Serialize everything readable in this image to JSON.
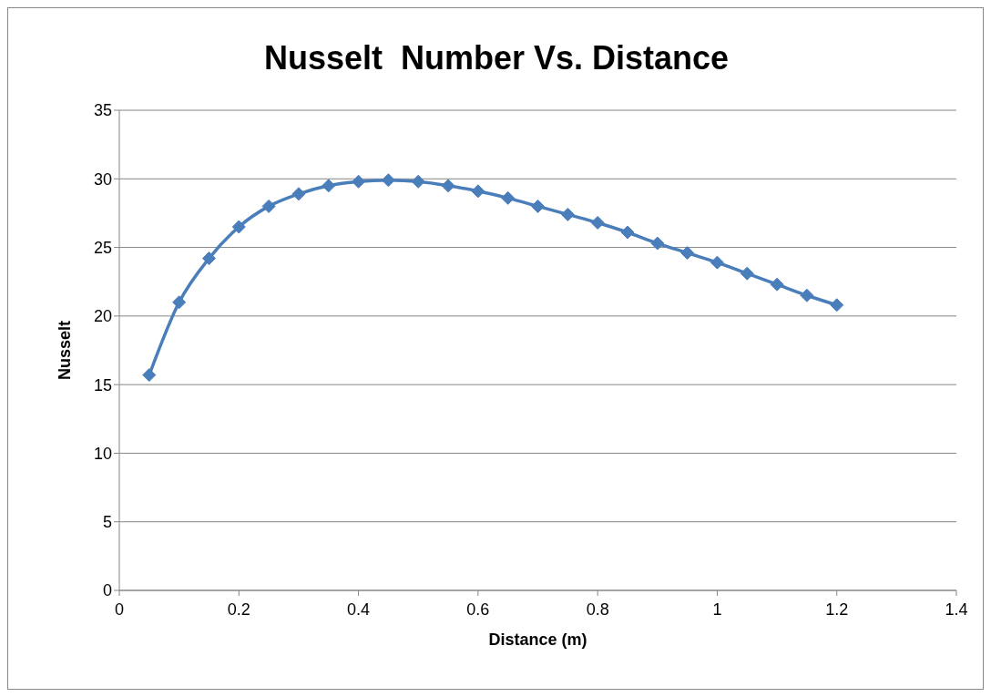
{
  "chart_data": {
    "type": "line",
    "title": "Nusselt  Number Vs. Distance",
    "xlabel": "Distance (m)",
    "ylabel": "Nusselt",
    "x": [
      0.05,
      0.1,
      0.15,
      0.2,
      0.25,
      0.3,
      0.35,
      0.4,
      0.45,
      0.5,
      0.55,
      0.6,
      0.65,
      0.7,
      0.75,
      0.8,
      0.85,
      0.9,
      0.95,
      1.0,
      1.05,
      1.1,
      1.15,
      1.2
    ],
    "series": [
      {
        "color": "#4a7ebb",
        "values": [
          15.7,
          21.0,
          24.2,
          26.5,
          28.0,
          28.9,
          29.5,
          29.8,
          29.9,
          29.8,
          29.5,
          29.1,
          28.6,
          28.0,
          27.4,
          26.8,
          26.1,
          25.3,
          24.6,
          23.9,
          23.1,
          22.3,
          21.5,
          20.8
        ]
      }
    ],
    "xlim": [
      0,
      1.4
    ],
    "xticks": [
      0,
      0.2,
      0.4,
      0.6,
      0.8,
      1,
      1.2,
      1.4
    ],
    "ylim": [
      0,
      35
    ],
    "yticks": [
      0,
      5,
      10,
      15,
      20,
      25,
      30,
      35
    ],
    "grid": "y",
    "legend": false,
    "marker": "diamond",
    "line_style": "solid"
  }
}
